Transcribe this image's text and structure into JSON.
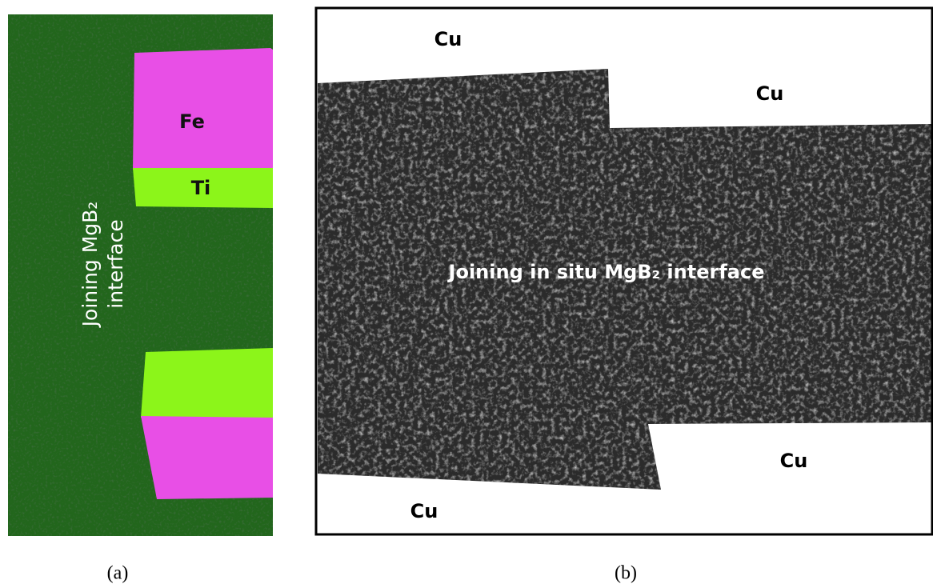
{
  "panel_a": {
    "labels": {
      "fe": "Fe",
      "ti": "Ti",
      "interface_line1": "Joining MgB₂",
      "interface_line2": "interface"
    },
    "caption": "(a)"
  },
  "panel_b": {
    "labels": {
      "cu_top_left": "Cu",
      "cu_top_right": "Cu",
      "cu_bottom_right": "Cu",
      "cu_bottom_left": "Cu",
      "interface": "Joining in situ MgB₂ interface"
    },
    "caption": "(b)"
  }
}
